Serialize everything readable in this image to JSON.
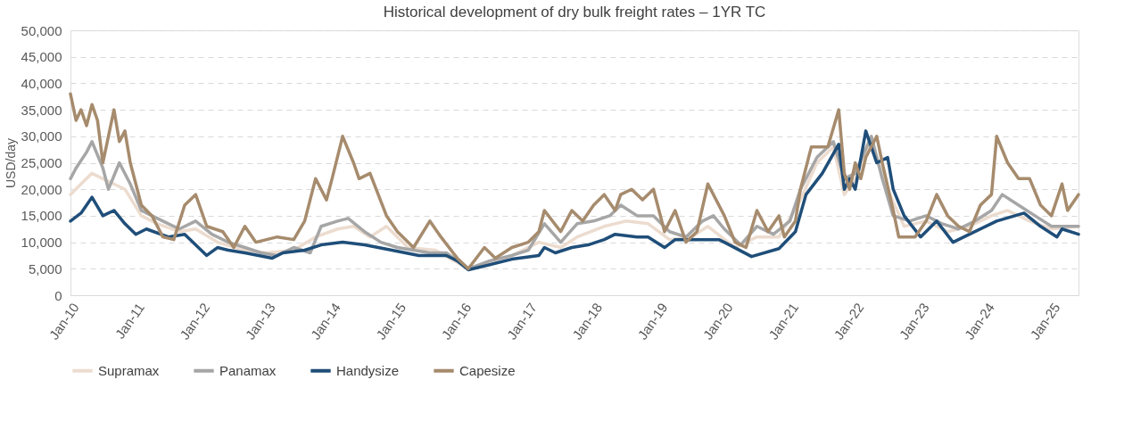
{
  "chart_data": {
    "type": "line",
    "title": "Historical development of dry bulk freight rates – 1YR TC",
    "ylabel": "USD/day",
    "xlim": [
      "2010-01",
      "2025-06"
    ],
    "xticks": [
      {
        "value": "2010-01",
        "label": "Jan-10"
      },
      {
        "value": "2011-01",
        "label": "Jan-11"
      },
      {
        "value": "2012-01",
        "label": "Jan-12"
      },
      {
        "value": "2013-01",
        "label": "Jan-13"
      },
      {
        "value": "2014-01",
        "label": "Jan-14"
      },
      {
        "value": "2015-01",
        "label": "Jan-15"
      },
      {
        "value": "2016-01",
        "label": "Jan-16"
      },
      {
        "value": "2017-01",
        "label": "Jan-17"
      },
      {
        "value": "2018-01",
        "label": "Jan-18"
      },
      {
        "value": "2019-01",
        "label": "Jan-19"
      },
      {
        "value": "2020-01",
        "label": "Jan-20"
      },
      {
        "value": "2021-01",
        "label": "Jan-21"
      },
      {
        "value": "2022-01",
        "label": "Jan-22"
      },
      {
        "value": "2023-01",
        "label": "Jan-23"
      },
      {
        "value": "2024-01",
        "label": "Jan-24"
      },
      {
        "value": "2025-01",
        "label": "Jan-25"
      }
    ],
    "ylim": [
      0,
      50000
    ],
    "yticks": [
      {
        "value": 0,
        "label": "0"
      },
      {
        "value": 5000,
        "label": "5,000"
      },
      {
        "value": 10000,
        "label": "10,000"
      },
      {
        "value": 15000,
        "label": "15,000"
      },
      {
        "value": 20000,
        "label": "20,000"
      },
      {
        "value": 25000,
        "label": "25,000"
      },
      {
        "value": 30000,
        "label": "30,000"
      },
      {
        "value": 35000,
        "label": "35,000"
      },
      {
        "value": 40000,
        "label": "40,000"
      },
      {
        "value": 45000,
        "label": "45,000"
      },
      {
        "value": 50000,
        "label": "50,000"
      }
    ],
    "grid": "y",
    "legend": "bottom",
    "marker": "none",
    "line_style": "solid",
    "series": [
      {
        "name": "Supramax",
        "color": "#ecdccf",
        "x": [
          "2010-01",
          "2010-03",
          "2010-05",
          "2010-07",
          "2010-09",
          "2010-11",
          "2011-02",
          "2011-05",
          "2011-09",
          "2011-12",
          "2012-04",
          "2012-09",
          "2013-01",
          "2013-06",
          "2013-10",
          "2014-02",
          "2014-05",
          "2014-08",
          "2014-11",
          "2015-03",
          "2015-08",
          "2016-02",
          "2016-06",
          "2016-10",
          "2017-03",
          "2017-07",
          "2017-10",
          "2018-03",
          "2018-07",
          "2018-11",
          "2019-03",
          "2019-07",
          "2019-10",
          "2020-03",
          "2020-07",
          "2020-11",
          "2021-03",
          "2021-06",
          "2021-09",
          "2021-11",
          "2022-01",
          "2022-04",
          "2022-07",
          "2022-10",
          "2023-02",
          "2023-06",
          "2023-10",
          "2024-02",
          "2024-05",
          "2024-09",
          "2025-01",
          "2025-06"
        ],
        "values": [
          19000,
          21000,
          23000,
          22000,
          21000,
          20000,
          15000,
          13500,
          12000,
          12500,
          10000,
          8500,
          8000,
          8500,
          11000,
          12500,
          13000,
          11000,
          13000,
          9000,
          8500,
          5000,
          6000,
          7500,
          10000,
          9000,
          11000,
          13000,
          14000,
          13500,
          10500,
          11000,
          13000,
          9000,
          11000,
          11000,
          18000,
          25000,
          28000,
          19000,
          22000,
          29000,
          20000,
          13000,
          14000,
          12000,
          13000,
          15000,
          16000,
          14000,
          12500,
          13000
        ]
      },
      {
        "name": "Panamax",
        "color": "#a6a6a6",
        "x": [
          "2010-01",
          "2010-02",
          "2010-04",
          "2010-05",
          "2010-07",
          "2010-08",
          "2010-10",
          "2010-12",
          "2011-02",
          "2011-04",
          "2011-06",
          "2011-09",
          "2011-12",
          "2012-03",
          "2012-06",
          "2012-09",
          "2012-12",
          "2013-03",
          "2013-06",
          "2013-09",
          "2013-11",
          "2014-02",
          "2014-04",
          "2014-07",
          "2014-10",
          "2015-01",
          "2015-04",
          "2015-07",
          "2015-10",
          "2016-02",
          "2016-06",
          "2016-10",
          "2017-01",
          "2017-04",
          "2017-07",
          "2017-10",
          "2018-01",
          "2018-04",
          "2018-06",
          "2018-09",
          "2018-12",
          "2019-03",
          "2019-06",
          "2019-09",
          "2019-11",
          "2020-01",
          "2020-04",
          "2020-07",
          "2020-10",
          "2021-01",
          "2021-03",
          "2021-06",
          "2021-09",
          "2021-11",
          "2022-01",
          "2022-04",
          "2022-06",
          "2022-08",
          "2022-11",
          "2023-02",
          "2023-05",
          "2023-08",
          "2023-11",
          "2024-02",
          "2024-04",
          "2024-07",
          "2024-10",
          "2025-01",
          "2025-06"
        ],
        "values": [
          22000,
          24000,
          27000,
          29000,
          24000,
          20000,
          25000,
          21000,
          16000,
          15000,
          14000,
          12500,
          14000,
          11500,
          10000,
          9000,
          8000,
          7500,
          9000,
          8000,
          13000,
          14000,
          14500,
          12000,
          10000,
          9000,
          8500,
          8000,
          8000,
          5000,
          6500,
          7500,
          8500,
          13500,
          10000,
          13500,
          14000,
          15000,
          17000,
          15000,
          15000,
          12000,
          11000,
          14000,
          15000,
          12500,
          9500,
          13000,
          11500,
          14000,
          20000,
          26000,
          29000,
          22000,
          23000,
          30000,
          22000,
          15000,
          14000,
          15000,
          13500,
          12500,
          14000,
          16000,
          19000,
          17000,
          15000,
          13000,
          13000
        ]
      },
      {
        "name": "Handysize",
        "color": "#1f4e79",
        "x": [
          "2010-01",
          "2010-03",
          "2010-04",
          "2010-05",
          "2010-07",
          "2010-09",
          "2010-11",
          "2011-01",
          "2011-03",
          "2011-07",
          "2011-10",
          "2012-02",
          "2012-04",
          "2012-06",
          "2012-09",
          "2013-02",
          "2013-04",
          "2013-08",
          "2013-11",
          "2014-03",
          "2014-07",
          "2014-12",
          "2015-05",
          "2015-10",
          "2015-12",
          "2016-02",
          "2016-05",
          "2016-10",
          "2017-03",
          "2017-04",
          "2017-06",
          "2017-09",
          "2017-12",
          "2018-03",
          "2018-05",
          "2018-09",
          "2018-11",
          "2019-02",
          "2019-04",
          "2019-07",
          "2019-12",
          "2020-01",
          "2020-06",
          "2020-11",
          "2021-02",
          "2021-04",
          "2021-07",
          "2021-10",
          "2021-11",
          "2021-12",
          "2022-01",
          "2022-03",
          "2022-05",
          "2022-07",
          "2022-08",
          "2022-10",
          "2023-01",
          "2023-04",
          "2023-07",
          "2023-10",
          "2024-03",
          "2024-08",
          "2024-11",
          "2025-02",
          "2025-03",
          "2025-06"
        ],
        "values": [
          14000,
          15500,
          17000,
          18500,
          15000,
          16000,
          13500,
          11500,
          12500,
          11000,
          11500,
          7500,
          9000,
          8500,
          8000,
          7000,
          8000,
          8500,
          9500,
          10000,
          9500,
          8500,
          7500,
          7500,
          6500,
          4800,
          5500,
          6800,
          7500,
          9000,
          8000,
          9000,
          9500,
          10500,
          11500,
          11000,
          11000,
          9000,
          10500,
          10500,
          10500,
          10000,
          7300,
          8800,
          12000,
          19000,
          23000,
          28500,
          20000,
          22000,
          20000,
          31000,
          25000,
          26000,
          20000,
          15000,
          11000,
          14000,
          10000,
          11500,
          14000,
          15500,
          13000,
          11000,
          12500,
          11500
        ]
      },
      {
        "name": "Capesize",
        "color": "#a68b6d",
        "x": [
          "2010-01",
          "2010-02",
          "2010-03",
          "2010-04",
          "2010-05",
          "2010-06",
          "2010-07",
          "2010-08",
          "2010-09",
          "2010-10",
          "2010-11",
          "2010-12",
          "2011-02",
          "2011-04",
          "2011-06",
          "2011-08",
          "2011-10",
          "2011-12",
          "2012-02",
          "2012-05",
          "2012-07",
          "2012-09",
          "2012-11",
          "2013-03",
          "2013-06",
          "2013-08",
          "2013-10",
          "2013-12",
          "2014-01",
          "2014-03",
          "2014-05",
          "2014-06",
          "2014-08",
          "2014-11",
          "2015-01",
          "2015-04",
          "2015-07",
          "2015-09",
          "2015-12",
          "2016-02",
          "2016-05",
          "2016-07",
          "2016-10",
          "2017-01",
          "2017-03",
          "2017-04",
          "2017-07",
          "2017-09",
          "2017-11",
          "2018-01",
          "2018-03",
          "2018-05",
          "2018-06",
          "2018-08",
          "2018-10",
          "2018-12",
          "2019-02",
          "2019-04",
          "2019-06",
          "2019-08",
          "2019-10",
          "2020-01",
          "2020-03",
          "2020-05",
          "2020-07",
          "2020-09",
          "2020-11",
          "2020-12",
          "2021-02",
          "2021-03",
          "2021-05",
          "2021-08",
          "2021-10",
          "2021-11",
          "2021-12",
          "2022-01",
          "2022-02",
          "2022-03",
          "2022-05",
          "2022-06",
          "2022-08",
          "2022-09",
          "2022-12",
          "2023-02",
          "2023-04",
          "2023-06",
          "2023-08",
          "2023-10",
          "2023-12",
          "2024-02",
          "2024-03",
          "2024-05",
          "2024-07",
          "2024-09",
          "2024-11",
          "2025-01",
          "2025-03",
          "2025-04",
          "2025-06"
        ],
        "values": [
          38000,
          33000,
          35000,
          32000,
          36000,
          33000,
          25000,
          30000,
          35000,
          29000,
          31000,
          25000,
          17000,
          15000,
          11000,
          10500,
          17000,
          19000,
          13000,
          12000,
          9000,
          13000,
          10000,
          11000,
          10500,
          14000,
          22000,
          18000,
          22000,
          30000,
          25000,
          22000,
          23000,
          15000,
          12000,
          9000,
          14000,
          11000,
          7000,
          5000,
          9000,
          7000,
          9000,
          10000,
          12000,
          16000,
          12000,
          16000,
          14000,
          17000,
          19000,
          16000,
          19000,
          20000,
          18000,
          20000,
          12000,
          16000,
          10000,
          12000,
          21000,
          15000,
          10000,
          9000,
          16000,
          12000,
          15000,
          11000,
          14000,
          20000,
          28000,
          28000,
          35000,
          23000,
          20000,
          25000,
          22000,
          26000,
          30000,
          25000,
          16000,
          11000,
          11000,
          14000,
          19000,
          15000,
          13000,
          12000,
          17000,
          19000,
          30000,
          25000,
          22000,
          22000,
          17000,
          15000,
          21000,
          16000,
          19000
        ]
      }
    ]
  }
}
